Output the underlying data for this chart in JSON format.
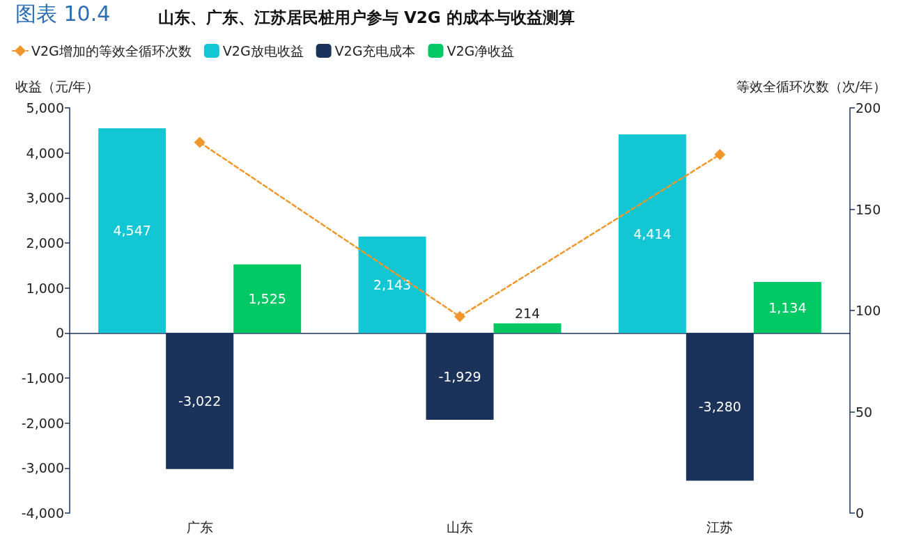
{
  "chart_data": {
    "type": "bar",
    "title": "山东、广东、江苏居民桩用户参与 V2G 的成本与收益测算",
    "annotations": [
      "图表 10.4"
    ],
    "ylabel": "收益（元/年）",
    "y2label": "等效全循环次数（次/年）",
    "categories": [
      "广东",
      "山东",
      "江苏"
    ],
    "series": [
      {
        "name": "V2G增加的等效全循环次数",
        "type": "line",
        "axis": "y2",
        "color": "#f0962b",
        "values": [
          183,
          97,
          177
        ],
        "marker": "diamond",
        "line_style": "dashed"
      },
      {
        "name": "V2G放电收益",
        "color": "#13c6d4",
        "values": [
          4547,
          2143,
          4414
        ],
        "value_labels": [
          "4,547",
          "2,143",
          "4,414"
        ]
      },
      {
        "name": "V2G充电成本",
        "color": "#1b325b",
        "values": [
          -3022,
          -1929,
          -3280
        ],
        "value_labels": [
          "-3,022",
          "-1,929",
          "-3,280"
        ]
      },
      {
        "name": "V2G净收益",
        "color": "#00c864",
        "values": [
          1525,
          214,
          1134
        ],
        "value_labels": [
          "1,525",
          "214",
          "1,134"
        ]
      }
    ],
    "ylim": [
      -4000,
      5000
    ],
    "yticks": [
      {
        "value": -4000,
        "label": "-4,000"
      },
      {
        "value": -3000,
        "label": "-3,000"
      },
      {
        "value": -2000,
        "label": "-2,000"
      },
      {
        "value": -1000,
        "label": "-1,000"
      },
      0,
      {
        "value": 1000,
        "label": "1,000"
      },
      {
        "value": 2000,
        "label": "2,000"
      },
      {
        "value": 3000,
        "label": "3,000"
      },
      {
        "value": 4000,
        "label": "4,000"
      },
      {
        "value": 5000,
        "label": "5,000"
      }
    ],
    "y2lim": [
      0,
      200
    ],
    "y2ticks": [
      0,
      50,
      100,
      150,
      200
    ],
    "grid": false,
    "legend": "top left"
  }
}
